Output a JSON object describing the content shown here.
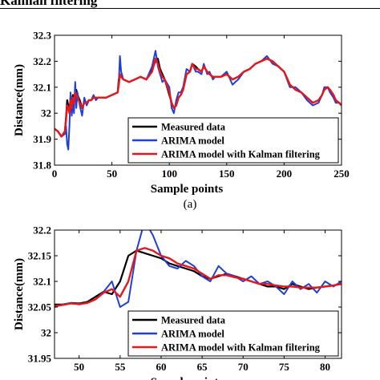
{
  "page": {
    "cropped_heading": "Kalman filtering",
    "caption_a": "(a)"
  },
  "chart_data": [
    {
      "type": "line",
      "xlabel": "Sample points",
      "ylabel": "Distance(mm)",
      "xlim": [
        0,
        250
      ],
      "ylim": [
        31.8,
        32.3
      ],
      "xticks": [
        0,
        50,
        100,
        150,
        200,
        250
      ],
      "yticks": [
        31.8,
        31.9,
        32,
        32.1,
        32.2,
        32.3
      ],
      "ytick_labels": [
        "31.8",
        "31.9",
        "32",
        "32.1",
        "32.2",
        "32.3"
      ],
      "grid": false,
      "legend_position": "bottom-right",
      "x": [
        0,
        3,
        6,
        9,
        10,
        11,
        12,
        13,
        14,
        15,
        16,
        17,
        18,
        19,
        20,
        22,
        24,
        26,
        28,
        30,
        32,
        34,
        36,
        38,
        40,
        45,
        50,
        55,
        56,
        57,
        58,
        60,
        65,
        70,
        75,
        80,
        85,
        88,
        90,
        92,
        94,
        96,
        100,
        102,
        104,
        106,
        108,
        110,
        112,
        115,
        118,
        120,
        123,
        125,
        128,
        130,
        133,
        135,
        138,
        140,
        145,
        150,
        155,
        160,
        165,
        170,
        175,
        180,
        185,
        190,
        195,
        200,
        205,
        210,
        215,
        220,
        225,
        230,
        233,
        235,
        238,
        240,
        243,
        245,
        248,
        250
      ],
      "series": [
        {
          "name": "Measured data",
          "color": "#000000",
          "values": [
            31.94,
            31.93,
            31.91,
            31.93,
            31.98,
            32.05,
            32.03,
            32.01,
            32.06,
            32.03,
            32.07,
            32.05,
            32.08,
            32.09,
            32.07,
            32.05,
            32.02,
            32.04,
            32.04,
            32.05,
            32.05,
            32.06,
            32.06,
            32.06,
            32.06,
            32.06,
            32.07,
            32.08,
            32.13,
            32.15,
            32.14,
            32.13,
            32.12,
            32.13,
            32.14,
            32.13,
            32.17,
            32.2,
            32.21,
            32.17,
            32.15,
            32.13,
            32.07,
            32.04,
            32.02,
            32.03,
            32.06,
            32.07,
            32.09,
            32.15,
            32.16,
            32.19,
            32.18,
            32.17,
            32.16,
            32.18,
            32.16,
            32.15,
            32.14,
            32.14,
            32.14,
            32.15,
            32.13,
            32.14,
            32.16,
            32.17,
            32.19,
            32.2,
            32.21,
            32.2,
            32.18,
            32.16,
            32.11,
            32.09,
            32.08,
            32.06,
            32.04,
            32.05,
            32.07,
            32.09,
            32.1,
            32.09,
            32.07,
            32.05,
            32.04,
            32.03
          ]
        },
        {
          "name": "ARIMA model",
          "color": "#1f3fd6",
          "values": [
            31.94,
            31.93,
            31.91,
            31.92,
            31.95,
            31.88,
            31.86,
            31.95,
            32.08,
            31.99,
            32.04,
            32.0,
            32.12,
            32.02,
            32.08,
            32.03,
            31.99,
            32.06,
            32.03,
            32.05,
            32.05,
            32.07,
            32.05,
            32.06,
            32.06,
            32.06,
            32.07,
            32.08,
            32.12,
            32.22,
            32.16,
            32.13,
            32.12,
            32.13,
            32.14,
            32.13,
            32.18,
            32.24,
            32.18,
            32.15,
            32.12,
            32.13,
            32.1,
            32.02,
            32.0,
            32.05,
            32.08,
            32.08,
            32.1,
            32.17,
            32.16,
            32.19,
            32.16,
            32.16,
            32.15,
            32.19,
            32.15,
            32.16,
            32.13,
            32.14,
            32.14,
            32.16,
            32.11,
            32.13,
            32.16,
            32.17,
            32.19,
            32.2,
            32.22,
            32.19,
            32.18,
            32.16,
            32.1,
            32.1,
            32.08,
            32.05,
            32.03,
            32.04,
            32.07,
            32.1,
            32.1,
            32.08,
            32.06,
            32.04,
            32.04,
            32.03
          ]
        },
        {
          "name": "ARIMA model with Kalman filtering",
          "color": "#e8171c",
          "values": [
            31.94,
            31.93,
            31.91,
            31.93,
            31.97,
            32.03,
            32.02,
            32.0,
            32.05,
            32.02,
            32.06,
            32.04,
            32.08,
            32.07,
            32.06,
            32.04,
            32.02,
            32.04,
            32.04,
            32.05,
            32.05,
            32.06,
            32.06,
            32.06,
            32.06,
            32.06,
            32.07,
            32.08,
            32.11,
            32.15,
            32.14,
            32.13,
            32.12,
            32.13,
            32.14,
            32.13,
            32.16,
            32.21,
            32.19,
            32.16,
            32.14,
            32.13,
            32.08,
            32.04,
            32.02,
            32.03,
            32.06,
            32.07,
            32.09,
            32.15,
            32.16,
            32.19,
            32.17,
            32.17,
            32.16,
            32.18,
            32.16,
            32.15,
            32.14,
            32.14,
            32.14,
            32.15,
            32.13,
            32.14,
            32.16,
            32.17,
            32.19,
            32.2,
            32.21,
            32.2,
            32.18,
            32.16,
            32.11,
            32.09,
            32.08,
            32.06,
            32.04,
            32.05,
            32.07,
            32.09,
            32.1,
            32.09,
            32.07,
            32.05,
            32.04,
            32.03
          ]
        }
      ]
    },
    {
      "type": "line",
      "xlabel": "Sample points",
      "ylabel": "Distance(mm)",
      "xlim": [
        47,
        82
      ],
      "ylim": [
        31.95,
        32.2
      ],
      "xticks": [
        50,
        55,
        60,
        65,
        70,
        75,
        80
      ],
      "yticks": [
        31.95,
        32,
        32.05,
        32.1,
        32.15,
        32.2
      ],
      "ytick_labels": [
        "31.95",
        "32",
        "32.05",
        "32.1",
        "32.15",
        "32.2"
      ],
      "grid": false,
      "legend_position": "bottom-right",
      "x": [
        47,
        48,
        49,
        50,
        51,
        52,
        53,
        54,
        55,
        56,
        57,
        58,
        59,
        60,
        61,
        62,
        63,
        64,
        65,
        66,
        67,
        68,
        69,
        70,
        71,
        72,
        73,
        74,
        75,
        76,
        77,
        78,
        79,
        80,
        81,
        82
      ],
      "series": [
        {
          "name": "Measured data",
          "color": "#000000",
          "values": [
            32.055,
            32.055,
            32.058,
            32.057,
            32.06,
            32.07,
            32.08,
            32.075,
            32.1,
            32.15,
            32.16,
            32.155,
            32.15,
            32.145,
            32.135,
            32.13,
            32.125,
            32.12,
            32.11,
            32.105,
            32.11,
            32.115,
            32.11,
            32.105,
            32.1,
            32.095,
            32.09,
            32.09,
            32.085,
            32.095,
            32.09,
            32.085,
            32.088,
            32.09,
            32.092,
            32.095
          ]
        },
        {
          "name": "ARIMA model",
          "color": "#1f3fd6",
          "values": [
            32.05,
            32.055,
            32.058,
            32.055,
            32.058,
            32.065,
            32.08,
            32.1,
            32.05,
            32.06,
            32.16,
            32.218,
            32.19,
            32.15,
            32.13,
            32.125,
            32.14,
            32.13,
            32.11,
            32.1,
            32.13,
            32.115,
            32.11,
            32.1,
            32.11,
            32.095,
            32.1,
            32.09,
            32.075,
            32.1,
            32.085,
            32.095,
            32.078,
            32.1,
            32.09,
            32.1
          ]
        },
        {
          "name": "ARIMA model with Kalman filtering",
          "color": "#e8171c",
          "values": [
            32.052,
            32.054,
            32.057,
            32.056,
            32.058,
            32.065,
            32.078,
            32.085,
            32.07,
            32.1,
            32.16,
            32.165,
            32.16,
            32.15,
            32.145,
            32.135,
            32.13,
            32.125,
            32.115,
            32.105,
            32.112,
            32.112,
            32.108,
            32.105,
            32.1,
            32.095,
            32.095,
            32.092,
            32.09,
            32.09,
            32.088,
            32.088,
            32.088,
            32.09,
            32.092,
            32.095
          ]
        }
      ]
    }
  ]
}
